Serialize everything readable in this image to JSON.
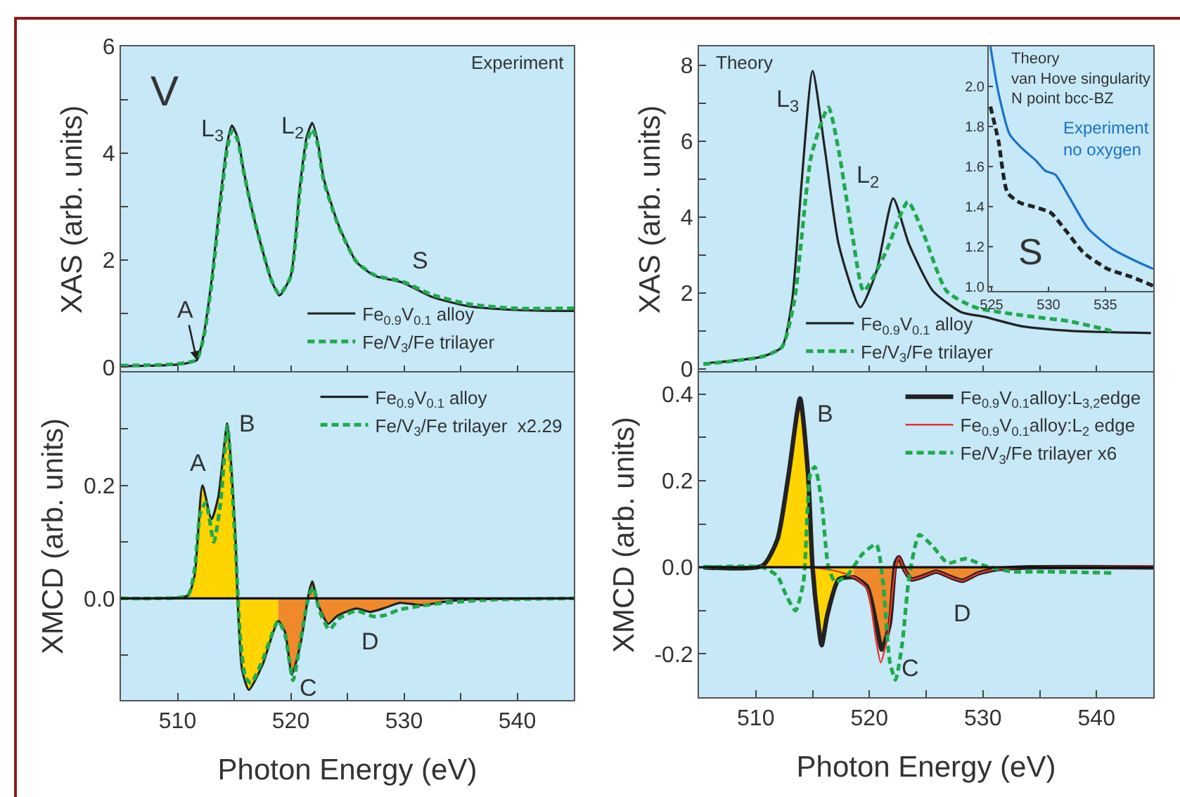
{
  "chart_data": [
    {
      "type": "line",
      "ylabel": "XAS (arb. units)",
      "xlim": [
        505,
        545
      ],
      "ylim": [
        -0.1,
        6
      ],
      "tick_labels": "y",
      "legend": "bottom",
      "xticks": [
        510,
        {
          "value": 515,
          "label": null
        },
        520,
        {
          "value": 525,
          "label": null
        },
        530,
        {
          "value": 535,
          "label": null
        },
        540
      ],
      "yticks": [
        0,
        {
          "value": 1,
          "label": null
        },
        2,
        {
          "value": 3,
          "label": null
        },
        4,
        {
          "value": 5,
          "label": null
        },
        6
      ],
      "annotations": [
        "V",
        "Experiment",
        {
          "text": "L$_{3}$",
          "x": 514.8,
          "y": 4.52
        },
        {
          "text": "L$_{2}$",
          "x": 521.9,
          "y": 4.57
        },
        {
          "text": "S",
          "x": 529.9,
          "y": 1.58
        },
        {
          "text": "A",
          "x": 511.7,
          "y": 0.13
        }
      ],
      "series": [
        {
          "name": "Fe$_{0.9}$V$_{0.1}$ alloy",
          "color": "#222222",
          "line_style": "solid",
          "x": [
            505,
            508,
            510,
            511,
            511.7,
            512.3,
            513,
            513.8,
            514.4,
            514.8,
            515.3,
            515.8,
            516.4,
            517.1,
            518.3,
            519,
            520,
            520.8,
            521.4,
            521.9,
            522.4,
            522.9,
            524.2,
            525.8,
            527.4,
            529.9,
            532.4,
            535.7,
            539.8,
            545
          ],
          "values": [
            0.02,
            0.03,
            0.05,
            0.08,
            0.13,
            0.6,
            1.62,
            3.2,
            4.2,
            4.52,
            4.3,
            3.72,
            3.1,
            2.5,
            1.62,
            1.34,
            1.71,
            3.37,
            4.3,
            4.57,
            4.2,
            3.54,
            2.67,
            1.97,
            1.71,
            1.58,
            1.32,
            1.14,
            1.07,
            1.05
          ]
        },
        {
          "name": "Fe/V$_{3}$/Fe trilayer",
          "color": "#1faa4b",
          "line_style": "dashed",
          "x": [
            505,
            508,
            510,
            511,
            511.7,
            512.3,
            513,
            513.8,
            514.4,
            514.8,
            515.3,
            515.8,
            516.4,
            517.1,
            518.3,
            519,
            520,
            520.8,
            521.4,
            521.9,
            522.4,
            522.9,
            524.2,
            525.8,
            527.4,
            529.9,
            532.4,
            535.7,
            539.8,
            545
          ],
          "values": [
            0.03,
            0.04,
            0.06,
            0.09,
            0.14,
            0.55,
            1.55,
            3.1,
            4.1,
            4.42,
            4.25,
            3.7,
            3.1,
            2.5,
            1.62,
            1.36,
            1.7,
            3.3,
            4.2,
            4.45,
            4.15,
            3.5,
            2.65,
            1.97,
            1.72,
            1.6,
            1.36,
            1.18,
            1.1,
            1.1
          ]
        }
      ]
    },
    {
      "type": "line",
      "xlabel": "Photon Energy (eV)",
      "ylabel": "XMCD (arb. units)",
      "xlim": [
        505,
        545
      ],
      "ylim": [
        -0.18,
        0.4
      ],
      "legend": "top right",
      "xticks": [
        510,
        {
          "value": 515,
          "label": null
        },
        520,
        {
          "value": 525,
          "label": null
        },
        530,
        {
          "value": 535,
          "label": null
        },
        540
      ],
      "yticks": [
        {
          "value": -0.1,
          "label": null
        },
        {
          "value": 0,
          "label": "0.0"
        },
        {
          "value": 0.1,
          "label": null
        },
        0.2,
        {
          "value": 0.3,
          "label": null
        }
      ],
      "ref_lines": [
        {
          "axis": "y",
          "value": 0,
          "color": "#111111"
        }
      ],
      "annotations": [
        {
          "text": "A",
          "x": 512.2,
          "y": 0.2
        },
        {
          "text": "B",
          "x": 514.4,
          "y": 0.31
        },
        {
          "text": "C",
          "x": 520.1,
          "y": -0.135
        },
        {
          "text": "D",
          "x": 527.0,
          "y": -0.024
        }
      ],
      "series": [
        {
          "type": "area",
          "color": "#ffd400",
          "x": [
            510.9,
            511.5,
            512.2,
            513.0,
            513.6,
            514.4,
            515.1,
            515.3,
            515.7,
            516.3,
            517.5,
            518.9
          ],
          "values": [
            0.005,
            0.04,
            0.2,
            0.14,
            0.18,
            0.31,
            0.115,
            0,
            -0.127,
            -0.162,
            -0.118,
            -0.04
          ]
        },
        {
          "type": "area",
          "color": "#f0892a",
          "x": [
            518.9,
            519.5,
            520.1,
            520.9,
            521.6,
            521.9,
            522.4,
            523.3,
            524.1,
            525.8,
            527.0,
            528.3,
            529.6,
            531.6,
            533.6
          ],
          "values": [
            -0.04,
            -0.06,
            -0.135,
            -0.077,
            0.01,
            0.03,
            -0.01,
            -0.045,
            -0.031,
            -0.018,
            -0.024,
            -0.017,
            -0.008,
            -0.012,
            -0.006
          ]
        },
        {
          "name": "Fe$_{0.9}$V$_{0.1}$ alloy",
          "color": "#222222",
          "line_style": "solid",
          "x": [
            505,
            508,
            510.9,
            511.5,
            512.2,
            513.0,
            513.6,
            514.4,
            515.1,
            515.3,
            515.7,
            516.3,
            517.5,
            518.9,
            519.5,
            520.1,
            520.9,
            521.6,
            521.9,
            522.4,
            523.3,
            524.1,
            525.8,
            527.0,
            528.3,
            529.6,
            531.6,
            533.6,
            535.7,
            545
          ],
          "values": [
            0,
            0,
            0.005,
            0.04,
            0.2,
            0.14,
            0.18,
            0.31,
            0.115,
            0,
            -0.127,
            -0.162,
            -0.118,
            -0.04,
            -0.06,
            -0.135,
            -0.077,
            0.01,
            0.03,
            -0.01,
            -0.045,
            -0.031,
            -0.018,
            -0.024,
            -0.017,
            -0.008,
            -0.012,
            -0.006,
            -0.002,
            0
          ]
        },
        {
          "name": "Fe/V$_{3}$/Fe trilayer  x2.29",
          "color": "#1faa4b",
          "line_style": "dashed",
          "x": [
            505,
            508,
            510.9,
            511.5,
            512.0,
            512.5,
            513.2,
            513.8,
            514.4,
            515.1,
            515.5,
            516.0,
            516.5,
            517.5,
            518.9,
            519.5,
            520.2,
            520.9,
            521.6,
            522.0,
            522.5,
            523.4,
            524.3,
            525.8,
            527.3,
            528.3,
            529.6,
            531.6,
            533.6,
            537,
            545
          ],
          "values": [
            0,
            0,
            0.005,
            0.05,
            0.15,
            0.17,
            0.1,
            0.17,
            0.305,
            0.1,
            -0.06,
            -0.14,
            -0.15,
            -0.11,
            -0.04,
            -0.065,
            -0.145,
            -0.07,
            0.005,
            0.02,
            -0.02,
            -0.055,
            -0.035,
            -0.022,
            -0.032,
            -0.03,
            -0.02,
            -0.013,
            -0.008,
            -0.003,
            0
          ]
        }
      ]
    },
    {
      "type": "line",
      "ylabel": "XAS (arb. units)",
      "xlim": [
        505,
        545
      ],
      "ylim": [
        -0.1,
        8.5
      ],
      "tick_labels": "y",
      "legend": "bottom left",
      "xticks": [
        510,
        {
          "value": 515,
          "label": null
        },
        520,
        {
          "value": 525,
          "label": null
        },
        530,
        {
          "value": 535,
          "label": null
        },
        540
      ],
      "yticks": [
        0,
        {
          "value": 1,
          "label": null
        },
        2,
        {
          "value": 3,
          "label": null
        },
        4,
        {
          "value": 5,
          "label": null
        },
        6,
        {
          "value": 7,
          "label": null
        },
        8
      ],
      "annotations": [
        "Theory",
        {
          "text": "L$_{3}$",
          "x": 515.0,
          "y": 7.85
        },
        {
          "text": "L$_{2}$",
          "x": 522.1,
          "y": 4.49
        }
      ],
      "series": [
        {
          "name": "Fe$_{0.9}$V$_{0.1}$ alloy",
          "color": "#222222",
          "line_style": "solid",
          "x": [
            505.4,
            510.6,
            512.3,
            513.2,
            514.0,
            515.0,
            516.1,
            517.3,
            519.2,
            520.6,
            522.1,
            523.5,
            525.6,
            528.1,
            530.1,
            533.4,
            537.6,
            544.8
          ],
          "values": [
            0.14,
            0.32,
            0.57,
            1.8,
            4.77,
            7.85,
            5.75,
            3.28,
            1.62,
            2.54,
            4.49,
            3.28,
            2.05,
            1.49,
            1.37,
            1.12,
            1.0,
            0.94
          ]
        },
        {
          "name": "Fe/V$_{3}$/Fe trilayer",
          "color": "#1faa4b",
          "line_style": "dashed",
          "x": [
            505.4,
            510.6,
            512.3,
            513.4,
            514.9,
            516.4,
            517.3,
            518.5,
            519.5,
            521.4,
            523.4,
            524.8,
            526.8,
            529.3,
            533.4,
            537.6,
            541.3
          ],
          "values": [
            0.12,
            0.32,
            0.57,
            1.8,
            5.63,
            6.89,
            5.75,
            3.53,
            2.05,
            3.04,
            4.4,
            3.53,
            2.05,
            1.62,
            1.41,
            1.25,
            1.0
          ]
        }
      ]
    },
    {
      "type": "line",
      "xlabel": "Photon Energy (eV)",
      "ylabel": "XMCD (arb. units)",
      "xlim": [
        505,
        545
      ],
      "ylim": [
        -0.3,
        0.45
      ],
      "legend": "top right",
      "xticks": [
        510,
        {
          "value": 515,
          "label": null
        },
        520,
        {
          "value": 525,
          "label": null
        },
        530,
        {
          "value": 535,
          "label": null
        },
        540
      ],
      "yticks": [
        -0.2,
        {
          "value": -0.1,
          "label": null
        },
        {
          "value": 0,
          "label": "0.0"
        },
        {
          "value": 0.1,
          "label": null
        },
        0.2,
        {
          "value": 0.3,
          "label": null
        },
        0.4
      ],
      "ref_lines": [
        {
          "axis": "y",
          "value": 0,
          "color": "#111111"
        }
      ],
      "annotations": [
        {
          "text": "B",
          "x": 513.9,
          "y": 0.39
        },
        {
          "text": "C",
          "x": 521.1,
          "y": -0.19
        },
        {
          "text": "D",
          "x": 528.2,
          "y": -0.031
        }
      ],
      "series": [
        {
          "type": "area",
          "color": "#ffd400",
          "x": [
            510.6,
            511.9,
            512.9,
            513.9,
            514.6,
            515.0,
            515.5,
            515.8,
            516.3,
            517.3,
            518.6
          ],
          "values": [
            0.004,
            0.064,
            0.216,
            0.39,
            0.216,
            0,
            -0.13,
            -0.18,
            -0.11,
            -0.028,
            -0.023
          ]
        },
        {
          "type": "area",
          "color": "#f0892a",
          "x": [
            518.6,
            519.8,
            520.6,
            521.1,
            521.8,
            522.3,
            522.6,
            523.1,
            523.7,
            524.5,
            525.9,
            527.2,
            528.2,
            529.6,
            531.3
          ],
          "values": [
            -0.023,
            -0.045,
            -0.13,
            -0.19,
            -0.13,
            0.01,
            0.023,
            -0.006,
            -0.028,
            -0.023,
            -0.01,
            -0.023,
            -0.031,
            -0.014,
            -0.004
          ]
        },
        {
          "name": "Fe$_{0.9}$V$_{0.1}$alloy:L$_{3,2}$edge",
          "color": "#222222",
          "line_style": "solid",
          "x": [
            505.4,
            510.6,
            511.9,
            512.9,
            513.9,
            514.6,
            515.0,
            515.5,
            515.8,
            516.3,
            517.3,
            518.6,
            519.8,
            520.6,
            521.1,
            521.8,
            522.3,
            522.6,
            523.1,
            523.7,
            524.5,
            525.9,
            527.2,
            528.2,
            529.6,
            531.3,
            534.2,
            545
          ],
          "values": [
            0,
            0.004,
            0.064,
            0.216,
            0.39,
            0.216,
            0,
            -0.13,
            -0.18,
            -0.11,
            -0.028,
            -0.023,
            -0.045,
            -0.13,
            -0.19,
            -0.13,
            0.01,
            0.023,
            -0.006,
            -0.028,
            -0.023,
            -0.01,
            -0.023,
            -0.031,
            -0.014,
            -0.004,
            0,
            0
          ]
        },
        {
          "name": "Fe$_{0.9}$V$_{0.1}$alloy:L$_{2}$ edge",
          "color": "#e8322a",
          "line_style": "solid",
          "x": [
            505.4,
            515.0,
            517.3,
            518.8,
            519.8,
            520.6,
            521.0,
            521.6,
            522.3,
            522.6,
            523.1,
            523.7,
            524.5,
            525.9,
            527.2,
            528.2,
            529.6,
            531.3,
            534.2,
            545
          ],
          "values": [
            0,
            0,
            -0.01,
            -0.025,
            -0.05,
            -0.17,
            -0.22,
            -0.16,
            0.0,
            0.023,
            -0.006,
            -0.028,
            -0.023,
            -0.01,
            -0.023,
            -0.031,
            -0.014,
            -0.004,
            0,
            0.003
          ]
        },
        {
          "name": "Fe/V$_{3}$/Fe trilayer x6",
          "color": "#1faa4b",
          "line_style": "dashed",
          "x": [
            505.4,
            510.6,
            511.9,
            512.7,
            513.5,
            514.2,
            514.8,
            515.2,
            515.8,
            516.4,
            517.0,
            518.1,
            519.4,
            520.6,
            521.2,
            521.8,
            522.3,
            522.9,
            523.5,
            524.4,
            525.6,
            526.9,
            528.5,
            530.1,
            532.6,
            535.5,
            541.3
          ],
          "values": [
            0,
            0,
            -0.02,
            -0.066,
            -0.1,
            -0.034,
            0.216,
            0.232,
            0.15,
            0,
            -0.034,
            -0.017,
            0.031,
            0.053,
            -0.034,
            -0.218,
            -0.26,
            -0.175,
            -0.023,
            0.075,
            0.048,
            0.01,
            0.02,
            0.004,
            -0.01,
            -0.01,
            -0.013
          ]
        }
      ]
    },
    {
      "type": "line",
      "xlim": [
        524.75,
        539.2
      ],
      "ylim": [
        0.98,
        2.2
      ],
      "xticks": [
        525,
        530,
        535
      ],
      "yticks": [
        {
          "value": 1,
          "label": "1.0"
        },
        1.2,
        1.4,
        1.6,
        1.8,
        {
          "value": 2,
          "label": "2.0"
        }
      ],
      "annotations": [
        "Theory\nvan Hove singularity\nN point bcc-BZ",
        "Experiment\nno oxygen",
        "S"
      ],
      "series": [
        {
          "color": "#1a72c8",
          "line_style": "solid",
          "x": [
            524.9,
            525.6,
            526.6,
            527.7,
            528.9,
            529.7,
            530.6,
            531.8,
            533.5,
            535.6,
            538.0,
            539.2
          ],
          "values": [
            2.2,
            1.97,
            1.76,
            1.69,
            1.63,
            1.58,
            1.56,
            1.45,
            1.29,
            1.19,
            1.12,
            1.09
          ]
        },
        {
          "color": "#222222",
          "line_style": "dashed",
          "x": [
            524.9,
            525.6,
            526.4,
            527.5,
            528.7,
            530.2,
            531.4,
            533.1,
            535.2,
            537.3,
            539.2
          ],
          "values": [
            1.9,
            1.73,
            1.47,
            1.42,
            1.4,
            1.37,
            1.29,
            1.17,
            1.09,
            1.05,
            1.005
          ]
        }
      ]
    }
  ]
}
